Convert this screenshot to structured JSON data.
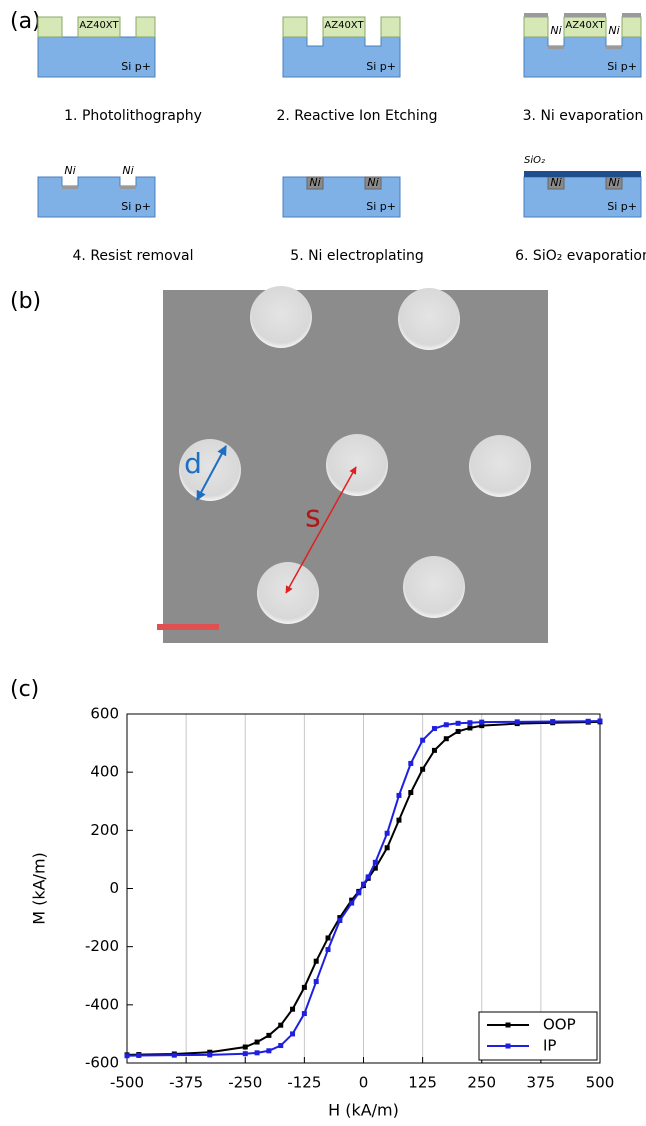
{
  "panel_labels": [
    "(a)",
    "(b)",
    "(c)"
  ],
  "process": {
    "resist_label": "AZ40XT",
    "substrate_label": "Si p+",
    "metal_label": "Ni",
    "oxide_label": "SiO₂",
    "steps": [
      "1. Photolithography",
      "2. Reactive Ion Etching",
      "3. Ni evaporation",
      "4. Resist removal",
      "5. Ni electroplating",
      "6. SiO₂ evaporation"
    ]
  },
  "sem": {
    "diameter_label": "d",
    "spacing_label": "s"
  },
  "chart_data": {
    "type": "line",
    "x_label": "H (kA/m)",
    "y_label": "M (kA/m)",
    "x": [
      -500,
      -475,
      -400,
      -325,
      -250,
      -225,
      -200,
      -175,
      -150,
      -125,
      -100,
      -75,
      -50,
      -25,
      -10,
      0,
      10,
      25,
      50,
      75,
      100,
      125,
      150,
      175,
      200,
      225,
      250,
      325,
      400,
      475,
      500
    ],
    "series": [
      {
        "name": "OOP",
        "color": "#000000",
        "values": [
          -572,
          -571,
          -569,
          -563,
          -545,
          -528,
          -505,
          -470,
          -415,
          -340,
          -250,
          -170,
          -100,
          -40,
          -10,
          10,
          35,
          70,
          140,
          235,
          330,
          410,
          475,
          515,
          540,
          552,
          560,
          567,
          570,
          572,
          573
        ]
      },
      {
        "name": "IP",
        "color": "#1f1fe0",
        "values": [
          -575,
          -574,
          -573,
          -572,
          -568,
          -565,
          -558,
          -540,
          -500,
          -430,
          -320,
          -210,
          -110,
          -50,
          -15,
          15,
          40,
          90,
          190,
          320,
          430,
          510,
          550,
          563,
          568,
          570,
          572,
          573,
          574,
          575,
          576
        ]
      }
    ],
    "xlim": [
      -500,
      500
    ],
    "ylim": [
      -600,
      600
    ],
    "xticks": [
      -500,
      -375,
      -250,
      -125,
      0,
      125,
      250,
      375,
      500
    ],
    "yticks": [
      -600,
      -400,
      -200,
      0,
      200,
      400,
      600
    ],
    "grid": "x",
    "legend": "lower-right"
  }
}
